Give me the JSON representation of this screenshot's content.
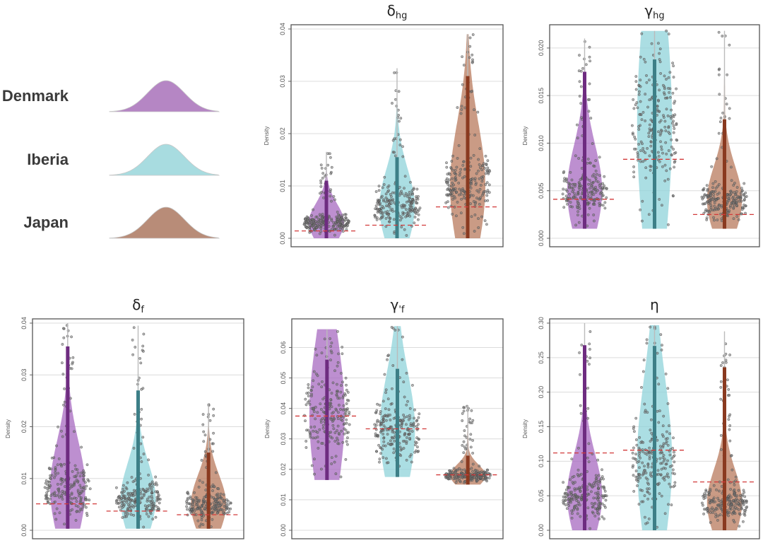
{
  "legend": {
    "items": [
      {
        "label": "Denmark",
        "color": "#b586c4"
      },
      {
        "label": "Iberia",
        "color": "#a8dce0"
      },
      {
        "label": "Japan",
        "color": "#b88c78"
      }
    ]
  },
  "colors": {
    "violin_fill": [
      "#a769c0",
      "#8fd3d9",
      "#b87a5c"
    ],
    "violin_bar": [
      "#6e2c80",
      "#3d7f87",
      "#8a3a20"
    ],
    "median_line": "#d23a3a",
    "point": "#555555"
  },
  "chart_data": [
    {
      "type": "violin",
      "title": "δ",
      "title_sub": "hg",
      "xlabel": "",
      "ylabel": "Density",
      "ylim": [
        0.0,
        0.04
      ],
      "yticks": [
        0.0,
        0.01,
        0.02,
        0.03,
        0.04
      ],
      "ytick_labels": [
        "0.00",
        "0.01",
        "0.02",
        "0.03",
        "0.04"
      ],
      "grid": true,
      "series": [
        {
          "name": "Denmark",
          "min": 0.0,
          "max": 0.0165,
          "bar_top": 0.011,
          "median": 0.0014,
          "bulk": 0.003
        },
        {
          "name": "Iberia",
          "min": 0.0,
          "max": 0.0325,
          "bar_top": 0.0155,
          "median": 0.0025,
          "bulk": 0.006
        },
        {
          "name": "Japan",
          "min": 0.0,
          "max": 0.039,
          "bar_top": 0.031,
          "median": 0.006,
          "bulk": 0.01
        }
      ]
    },
    {
      "type": "violin",
      "title": "γ",
      "title_sub": "hg",
      "xlabel": "",
      "ylabel": "Density",
      "ylim": [
        0.0,
        0.022
      ],
      "yticks": [
        0.0,
        0.005,
        0.01,
        0.015,
        0.02
      ],
      "ytick_labels": [
        "0.000",
        "0.005",
        "0.010",
        "0.015",
        "0.020"
      ],
      "grid": true,
      "series": [
        {
          "name": "Denmark",
          "min": 0.001,
          "max": 0.021,
          "bar_top": 0.0175,
          "median": 0.0041,
          "bulk": 0.005
        },
        {
          "name": "Iberia",
          "min": 0.001,
          "max": 0.0218,
          "bar_top": 0.0188,
          "median": 0.0083,
          "bulk": 0.012
        },
        {
          "name": "Japan",
          "min": 0.001,
          "max": 0.0218,
          "bar_top": 0.0125,
          "median": 0.0025,
          "bulk": 0.004
        }
      ]
    },
    {
      "type": "violin",
      "title": "δ",
      "title_sub": "f",
      "xlabel": "",
      "ylabel": "Density",
      "ylim": [
        0.0,
        0.04
      ],
      "yticks": [
        0.0,
        0.01,
        0.02,
        0.03,
        0.04
      ],
      "ytick_labels": [
        "0.00",
        "0.01",
        "0.02",
        "0.03",
        "0.04"
      ],
      "grid": true,
      "series": [
        {
          "name": "Denmark",
          "min": 0.0003,
          "max": 0.04,
          "bar_top": 0.0355,
          "median": 0.0051,
          "bulk": 0.008
        },
        {
          "name": "Iberia",
          "min": 0.0003,
          "max": 0.0395,
          "bar_top": 0.027,
          "median": 0.0037,
          "bulk": 0.006
        },
        {
          "name": "Japan",
          "min": 0.0003,
          "max": 0.0245,
          "bar_top": 0.015,
          "median": 0.003,
          "bulk": 0.005
        }
      ]
    },
    {
      "type": "violin",
      "title": "γ",
      "title_sub": "'f",
      "xlabel": "",
      "ylabel": "Density",
      "ylim": [
        0.0,
        0.068
      ],
      "yticks": [
        0.0,
        0.01,
        0.02,
        0.03,
        0.04,
        0.05,
        0.06
      ],
      "ytick_labels": [
        "0.00",
        "0.01",
        "0.02",
        "0.03",
        "0.04",
        "0.05",
        "0.06"
      ],
      "grid": true,
      "series": [
        {
          "name": "Denmark",
          "min": 0.0165,
          "max": 0.066,
          "bar_top": 0.056,
          "median": 0.0375,
          "bulk": 0.038
        },
        {
          "name": "Iberia",
          "min": 0.0175,
          "max": 0.067,
          "bar_top": 0.053,
          "median": 0.0333,
          "bulk": 0.033
        },
        {
          "name": "Japan",
          "min": 0.015,
          "max": 0.041,
          "bar_top": 0.0245,
          "median": 0.0182,
          "bulk": 0.018
        }
      ]
    },
    {
      "type": "violin",
      "title": "η",
      "title_sub": "",
      "xlabel": "",
      "ylabel": "Density",
      "ylim": [
        0.0,
        0.3
      ],
      "yticks": [
        0.0,
        0.05,
        0.1,
        0.15,
        0.2,
        0.25,
        0.3
      ],
      "ytick_labels": [
        "0.00",
        "0.05",
        "0.10",
        "0.15",
        "0.20",
        "0.25",
        "0.30"
      ],
      "grid": true,
      "series": [
        {
          "name": "Denmark",
          "min": 0.0,
          "max": 0.3,
          "bar_top": 0.268,
          "median": 0.112,
          "bulk": 0.05
        },
        {
          "name": "Iberia",
          "min": 0.0,
          "max": 0.297,
          "bar_top": 0.267,
          "median": 0.116,
          "bulk": 0.1
        },
        {
          "name": "Japan",
          "min": 0.0,
          "max": 0.288,
          "bar_top": 0.236,
          "median": 0.07,
          "bulk": 0.04
        }
      ]
    }
  ]
}
